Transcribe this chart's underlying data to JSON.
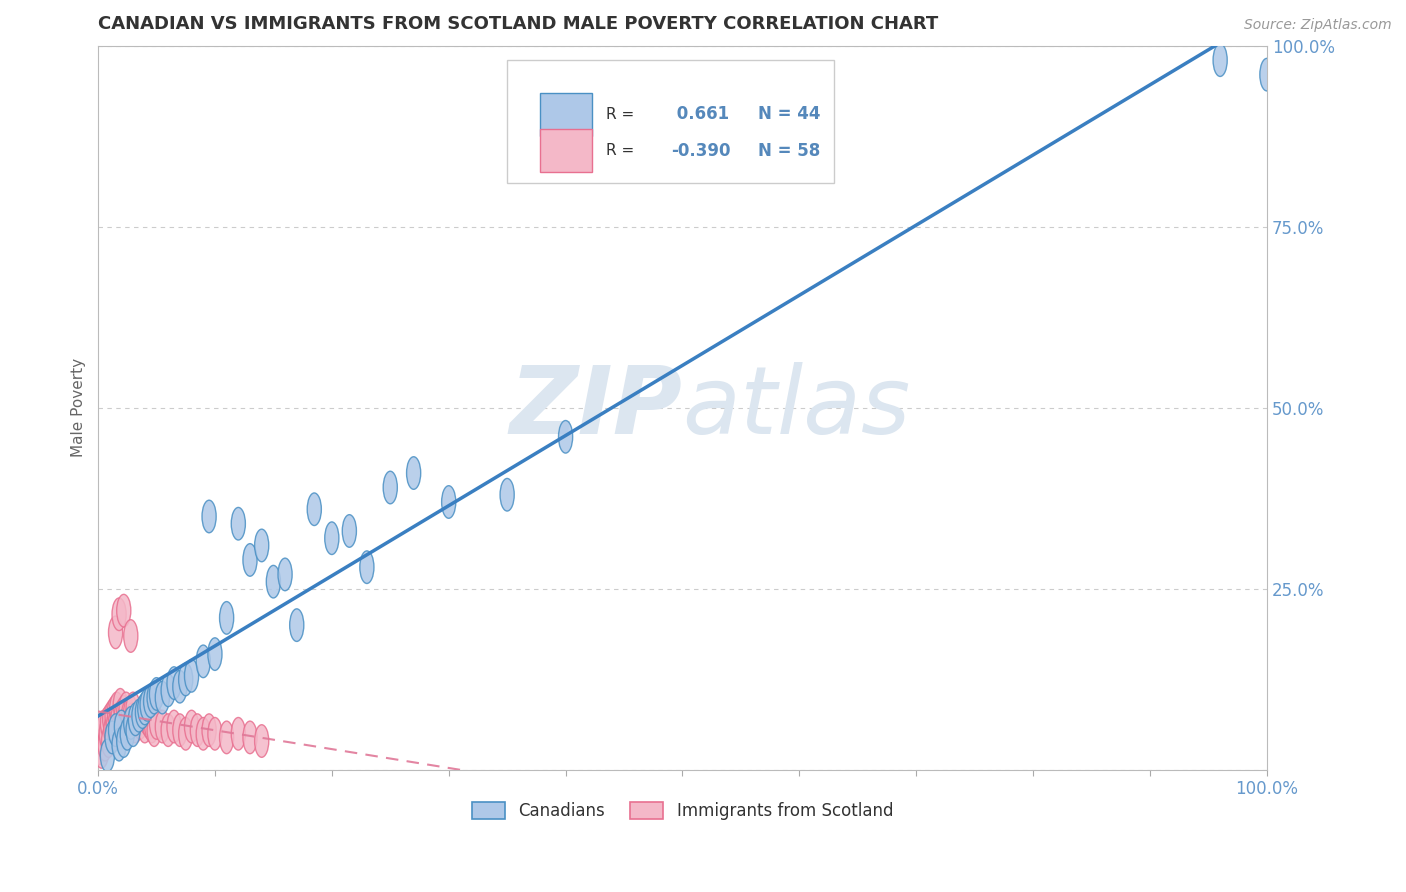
{
  "title": "CANADIAN VS IMMIGRANTS FROM SCOTLAND MALE POVERTY CORRELATION CHART",
  "source_text": "Source: ZipAtlas.com",
  "ylabel": "Male Poverty",
  "canadian_R": 0.661,
  "canadian_N": 44,
  "immigrant_R": -0.39,
  "immigrant_N": 58,
  "blue_face": "#aec8e8",
  "blue_edge": "#4a90c4",
  "pink_face": "#f4b8c8",
  "pink_edge": "#e87090",
  "blue_line": "#3a7fc1",
  "pink_line": "#e07898",
  "bg_color": "#ffffff",
  "grid_color": "#cccccc",
  "watermark_color": "#dce6f0",
  "title_color": "#333333",
  "tick_color": "#6699cc",
  "legend_val_color": "#5588bb",
  "canadians_x": [
    0.008,
    0.012,
    0.015,
    0.018,
    0.02,
    0.022,
    0.025,
    0.028,
    0.03,
    0.032,
    0.035,
    0.038,
    0.04,
    0.042,
    0.045,
    0.048,
    0.05,
    0.055,
    0.06,
    0.065,
    0.07,
    0.075,
    0.08,
    0.09,
    0.095,
    0.1,
    0.11,
    0.12,
    0.13,
    0.14,
    0.15,
    0.16,
    0.17,
    0.185,
    0.2,
    0.215,
    0.23,
    0.25,
    0.27,
    0.3,
    0.35,
    0.4,
    0.96,
    1.0
  ],
  "canadians_y": [
    0.02,
    0.045,
    0.055,
    0.035,
    0.06,
    0.04,
    0.05,
    0.065,
    0.055,
    0.07,
    0.075,
    0.08,
    0.085,
    0.09,
    0.095,
    0.1,
    0.105,
    0.1,
    0.11,
    0.12,
    0.115,
    0.125,
    0.13,
    0.15,
    0.35,
    0.16,
    0.21,
    0.34,
    0.29,
    0.31,
    0.26,
    0.27,
    0.2,
    0.36,
    0.32,
    0.33,
    0.28,
    0.39,
    0.41,
    0.37,
    0.38,
    0.46,
    0.98,
    0.96
  ],
  "immigrants_x": [
    0.001,
    0.002,
    0.003,
    0.004,
    0.005,
    0.006,
    0.007,
    0.008,
    0.009,
    0.01,
    0.011,
    0.012,
    0.013,
    0.014,
    0.015,
    0.016,
    0.017,
    0.018,
    0.019,
    0.02,
    0.021,
    0.022,
    0.023,
    0.024,
    0.025,
    0.026,
    0.027,
    0.028,
    0.029,
    0.03,
    0.032,
    0.034,
    0.036,
    0.038,
    0.04,
    0.042,
    0.044,
    0.046,
    0.048,
    0.05,
    0.055,
    0.06,
    0.065,
    0.07,
    0.075,
    0.08,
    0.085,
    0.09,
    0.095,
    0.1,
    0.11,
    0.12,
    0.13,
    0.14,
    0.015,
    0.018,
    0.022,
    0.028
  ],
  "immigrants_y": [
    0.03,
    0.045,
    0.025,
    0.055,
    0.06,
    0.035,
    0.05,
    0.065,
    0.04,
    0.07,
    0.055,
    0.075,
    0.06,
    0.08,
    0.065,
    0.085,
    0.07,
    0.06,
    0.09,
    0.075,
    0.065,
    0.08,
    0.07,
    0.085,
    0.06,
    0.075,
    0.065,
    0.08,
    0.07,
    0.085,
    0.06,
    0.07,
    0.065,
    0.075,
    0.06,
    0.07,
    0.065,
    0.06,
    0.055,
    0.065,
    0.06,
    0.055,
    0.06,
    0.055,
    0.05,
    0.06,
    0.055,
    0.05,
    0.055,
    0.05,
    0.045,
    0.05,
    0.045,
    0.04,
    0.19,
    0.215,
    0.22,
    0.185
  ],
  "xlim": [
    0.0,
    1.0
  ],
  "ylim": [
    0.0,
    1.0
  ],
  "xticks": [
    0.0,
    0.1,
    0.2,
    0.3,
    0.4,
    0.5,
    0.6,
    0.7,
    0.8,
    0.9,
    1.0
  ],
  "xticklabels": [
    "0.0%",
    "",
    "",
    "",
    "",
    "",
    "",
    "",
    "",
    "",
    "100.0%"
  ],
  "yticks": [
    0.0,
    0.25,
    0.5,
    0.75,
    1.0
  ],
  "yticklabels_right": [
    "",
    "25.0%",
    "50.0%",
    "75.0%",
    "100.0%"
  ]
}
